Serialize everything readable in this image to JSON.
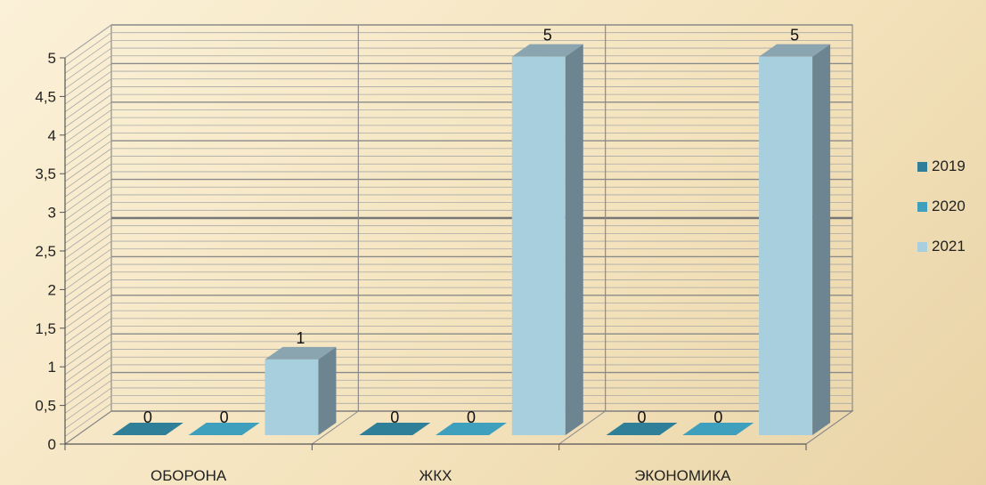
{
  "chart_data": {
    "type": "bar",
    "categories": [
      "ОБОРОНА",
      "ЖКХ",
      "ЭКОНОМИКА"
    ],
    "series": [
      {
        "name": "2019",
        "values": [
          0,
          0,
          0
        ]
      },
      {
        "name": "2020",
        "values": [
          0,
          0,
          0
        ]
      },
      {
        "name": "2021",
        "values": [
          1,
          5,
          5
        ]
      }
    ],
    "data_labels": [
      [
        "0",
        "0",
        "1"
      ],
      [
        "0",
        "0",
        "5"
      ],
      [
        "0",
        "0",
        "5"
      ]
    ],
    "y_ticks": [
      "0",
      "0,5",
      "1",
      "1,5",
      "2",
      "2,5",
      "3",
      "3,5",
      "4",
      "4,5",
      "5"
    ],
    "ylim": [
      0,
      5
    ],
    "grid": true,
    "legend_position": "right",
    "colors": {
      "2019": "#2e7f97",
      "2020": "#3fa0bd",
      "2021": "#a8cfdd",
      "side": "#6d8591",
      "top": "#8aa4b0",
      "grid": "#7a7a7a"
    }
  }
}
